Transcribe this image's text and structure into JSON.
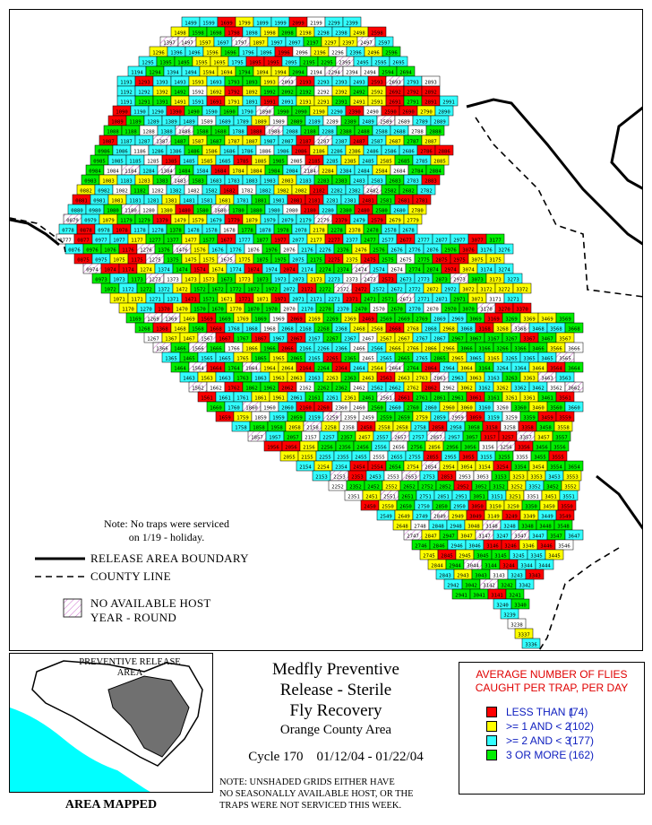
{
  "map": {
    "note_line1": "Note: No traps were serviced",
    "note_line2": "on 1/19 - holiday.",
    "grid_row_start_values": [
      1099,
      1098,
      1097,
      996,
      995,
      694,
      690,
      692,
      591,
      490,
      489,
      488,
      487,
      286,
      285,
      484,
      483,
      682,
      681,
      780,
      879,
      978,
      1077,
      1276,
      1375,
      1674,
      1873,
      1872,
      1971,
      2170,
      2269,
      2368,
      2367,
      2466,
      2565,
      2864,
      2963,
      3062,
      3161,
      3160
    ],
    "grid_columns_in_first_row": [
      1099,
      1199,
      1299,
      1399,
      1499,
      1599,
      1699,
      1799,
      1899,
      1999,
      2099,
      2199
    ]
  },
  "legend": {
    "release_boundary": "RELEASE AREA BOUNDARY",
    "county_line": "COUNTY LINE",
    "no_host_line1": "NO AVAILABLE HOST",
    "no_host_line2": "YEAR - ROUND"
  },
  "inset": {
    "label_line1": "PREVENTIVE RELEASE",
    "label_line2": "AREA",
    "caption": "AREA MAPPED"
  },
  "title": {
    "line1": "Medfly Preventive",
    "line2": "Release - Sterile",
    "line3": "Fly Recovery",
    "subtitle": "Orange County Area",
    "cycle": "Cycle 170    01/12/04 - 01/22/04"
  },
  "footnote": {
    "line1": "NOTE: UNSHADED GRIDS EITHER HAVE",
    "line2": "NO SEASONALLY AVAILABLE HOST, OR THE",
    "line3": "TRAPS WERE NOT SERVICED THIS WEEK."
  },
  "key": {
    "title_line1": "AVERAGE NUMBER OF FLIES",
    "title_line2": "CAUGHT PER TRAP, PER DAY",
    "items": [
      {
        "label": "LESS THAN 1",
        "count": "(74)",
        "color": "#ff0000"
      },
      {
        "label": ">= 1 AND < 2",
        "count": "(102)",
        "color": "#ffff00"
      },
      {
        "label": ">= 2 AND < 3",
        "count": "(177)",
        "color": "#33ffff"
      },
      {
        "label": "3 OR MORE",
        "count": "(162)",
        "color": "#00ee00"
      }
    ]
  },
  "colors": {
    "less_than_1": "#ff0000",
    "one_to_two": "#ffff00",
    "two_to_three": "#33ffff",
    "three_or_more": "#00ee00",
    "no_host_hatch": "#cc66cc",
    "ocean": "#00ffff",
    "mapped_area": "#707070",
    "key_title": "#e00000",
    "key_text": "#1020c0"
  }
}
